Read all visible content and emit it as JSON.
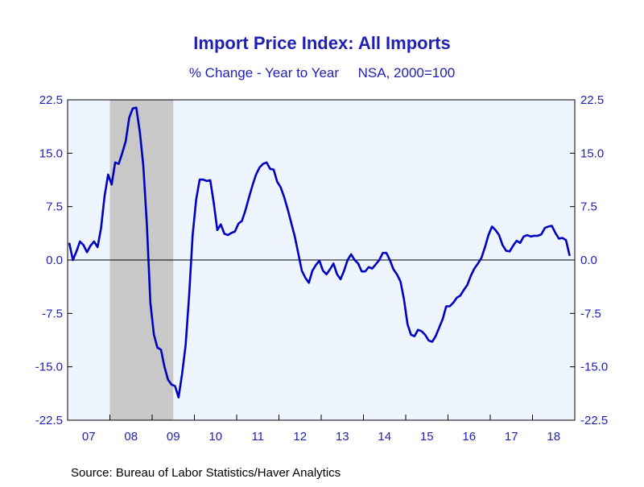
{
  "chart_data": {
    "type": "line",
    "title": "Import Price Index: All Imports",
    "subtitle": "% Change - Year to Year     NSA, 2000=100",
    "source": "Source:  Bureau of Labor Statistics/Haver Analytics",
    "ylim": [
      -22.5,
      22.5
    ],
    "yticks": [
      22.5,
      15.0,
      7.5,
      0.0,
      -7.5,
      -15.0,
      -22.5
    ],
    "ytick_labels": [
      "22.5",
      "15.0",
      "7.5",
      "0.0",
      "-7.5",
      "-15.0",
      "-22.5"
    ],
    "x_start": "2007-01",
    "x_end": "2018-12",
    "year_labels": [
      "07",
      "08",
      "09",
      "10",
      "11",
      "12",
      "13",
      "14",
      "15",
      "16",
      "17",
      "18"
    ],
    "recession": {
      "start": "2008-01",
      "end": "2009-06"
    },
    "grid": false,
    "colors": {
      "line": "#0000c0",
      "text": "#1f1fb4",
      "plot_background": "#eef5ff",
      "recession": "#c8c8c8"
    },
    "series": [
      {
        "dates": [
          "2007-01",
          "2007-02",
          "2007-03",
          "2007-04",
          "2007-05",
          "2007-06",
          "2007-07",
          "2007-08",
          "2007-09",
          "2007-10",
          "2007-11",
          "2007-12",
          "2008-01",
          "2008-02",
          "2008-03",
          "2008-04",
          "2008-05",
          "2008-06",
          "2008-07",
          "2008-08",
          "2008-09",
          "2008-10",
          "2008-11",
          "2008-12",
          "2009-01",
          "2009-02",
          "2009-03",
          "2009-04",
          "2009-05",
          "2009-06",
          "2009-07",
          "2009-08",
          "2009-09",
          "2009-10",
          "2009-11",
          "2009-12",
          "2010-01",
          "2010-02",
          "2010-03",
          "2010-04",
          "2010-05",
          "2010-06",
          "2010-07",
          "2010-08",
          "2010-09",
          "2010-10",
          "2010-11",
          "2010-12",
          "2011-01",
          "2011-02",
          "2011-03",
          "2011-04",
          "2011-05",
          "2011-06",
          "2011-07",
          "2011-08",
          "2011-09",
          "2011-10",
          "2011-11",
          "2011-12",
          "2012-01",
          "2012-02",
          "2012-03",
          "2012-04",
          "2012-05",
          "2012-06",
          "2012-07",
          "2012-08",
          "2012-09",
          "2012-10",
          "2012-11",
          "2012-12",
          "2013-01",
          "2013-02",
          "2013-03",
          "2013-04",
          "2013-05",
          "2013-06",
          "2013-07",
          "2013-08",
          "2013-09",
          "2013-10",
          "2013-11",
          "2013-12",
          "2014-01",
          "2014-02",
          "2014-03",
          "2014-04",
          "2014-05",
          "2014-06",
          "2014-07",
          "2014-08",
          "2014-09",
          "2014-10",
          "2014-11",
          "2014-12",
          "2015-01",
          "2015-02",
          "2015-03",
          "2015-04",
          "2015-05",
          "2015-06",
          "2015-07",
          "2015-08",
          "2015-09",
          "2015-10",
          "2015-11",
          "2015-12",
          "2016-01",
          "2016-02",
          "2016-03",
          "2016-04",
          "2016-05",
          "2016-06",
          "2016-07",
          "2016-08",
          "2016-09",
          "2016-10",
          "2016-11",
          "2016-12",
          "2017-01",
          "2017-02",
          "2017-03",
          "2017-04",
          "2017-05",
          "2017-06",
          "2017-07",
          "2017-08",
          "2017-09",
          "2017-10",
          "2017-11",
          "2017-12",
          "2018-01",
          "2018-02",
          "2018-03",
          "2018-04",
          "2018-05",
          "2018-06",
          "2018-07",
          "2018-08",
          "2018-09",
          "2018-10",
          "2018-11"
        ],
        "values": [
          2.3,
          0.0,
          1.2,
          2.6,
          2.1,
          1.1,
          2.0,
          2.6,
          1.8,
          4.5,
          9.0,
          12.0,
          10.6,
          13.7,
          13.5,
          15.0,
          16.7,
          20.0,
          21.3,
          21.4,
          18.0,
          13.2,
          5.0,
          -6.0,
          -10.5,
          -12.3,
          -12.6,
          -15.0,
          -16.8,
          -17.5,
          -17.7,
          -19.3,
          -16.0,
          -12.0,
          -5.0,
          3.5,
          8.5,
          11.3,
          11.3,
          11.1,
          11.2,
          8.0,
          4.2,
          5.0,
          3.7,
          3.5,
          3.8,
          4.0,
          5.1,
          5.5,
          7.0,
          8.8,
          10.5,
          12.0,
          13.0,
          13.5,
          13.7,
          12.8,
          12.7,
          11.0,
          10.2,
          8.8,
          7.1,
          5.2,
          3.3,
          0.9,
          -1.5,
          -2.5,
          -3.2,
          -1.5,
          -0.7,
          -0.1,
          -1.5,
          -2.0,
          -1.3,
          -0.5,
          -2.0,
          -2.7,
          -1.5,
          0.0,
          0.8,
          0.0,
          -0.5,
          -1.6,
          -1.6,
          -1.0,
          -1.2,
          -0.6,
          0.0,
          1.0,
          1.0,
          0.0,
          -1.3,
          -2.0,
          -3.0,
          -5.5,
          -9.0,
          -10.5,
          -10.7,
          -9.8,
          -10.0,
          -10.5,
          -11.3,
          -11.5,
          -10.7,
          -9.5,
          -8.3,
          -6.5,
          -6.5,
          -6.0,
          -5.3,
          -5.0,
          -4.2,
          -3.5,
          -2.2,
          -1.2,
          -0.5,
          0.3,
          1.8,
          3.5,
          4.7,
          4.2,
          3.5,
          2.1,
          1.3,
          1.2,
          2.0,
          2.7,
          2.4,
          3.3,
          3.5,
          3.3,
          3.4,
          3.4,
          3.6,
          4.5,
          4.7,
          4.8,
          3.8,
          3.0,
          3.1,
          2.8,
          0.7
        ]
      }
    ]
  }
}
